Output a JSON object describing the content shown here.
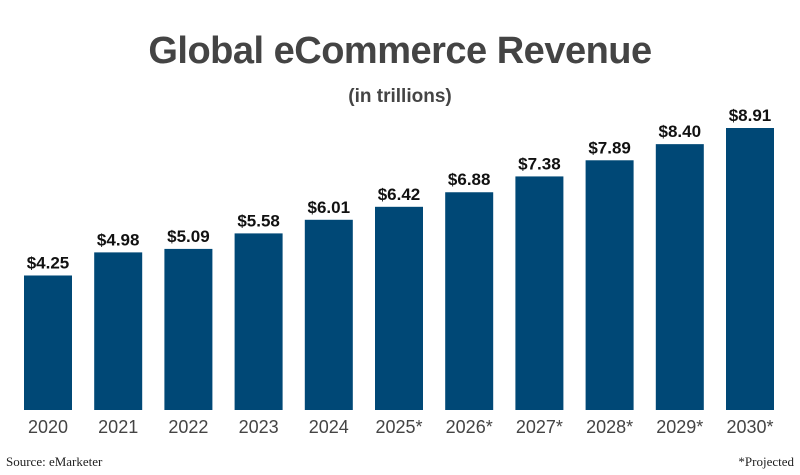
{
  "chart_data": {
    "type": "bar",
    "title": "Global eCommerce Revenue",
    "subtitle": "(in trillions)",
    "categories": [
      "2020",
      "2021",
      "2022",
      "2023",
      "2024",
      "2025*",
      "2026*",
      "2027*",
      "2028*",
      "2029*",
      "2030*"
    ],
    "values": [
      4.25,
      4.98,
      5.09,
      5.58,
      6.01,
      6.42,
      6.88,
      7.38,
      7.89,
      8.4,
      8.91
    ],
    "data_labels": [
      "$4.25",
      "$4.98",
      "$5.09",
      "$5.58",
      "$6.01",
      "$6.42",
      "$6.88",
      "$7.38",
      "$7.89",
      "$8.40",
      "$8.91"
    ],
    "xlabel": "",
    "ylabel": "",
    "ylim": [
      0,
      8.91
    ],
    "grid": false,
    "bar_color": "#004876",
    "text_color": "#444444"
  },
  "footer": {
    "source": "Source: eMarketer",
    "note": "*Projected"
  }
}
